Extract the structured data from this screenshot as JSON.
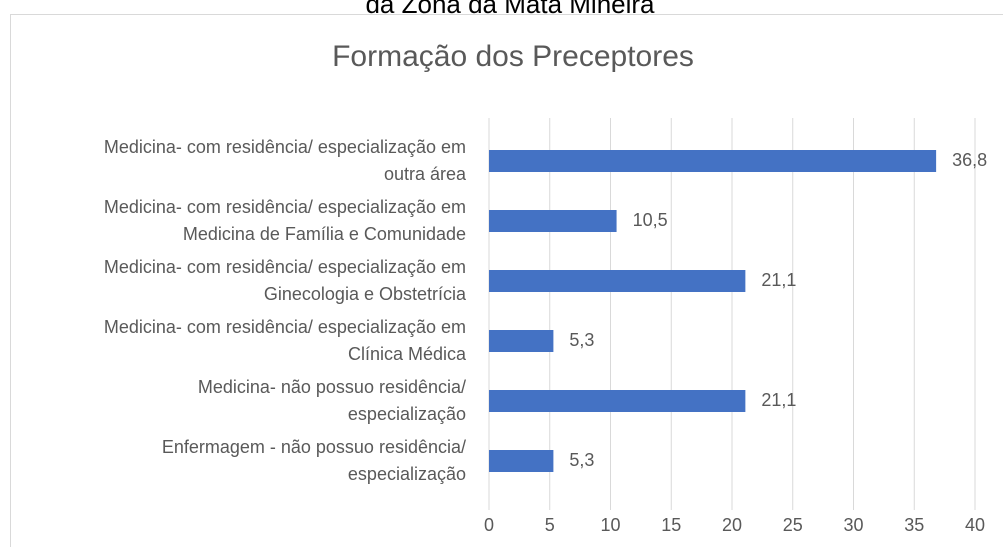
{
  "header_text": "da Zona da Mata Mineira",
  "chart_data": {
    "type": "bar",
    "orientation": "horizontal",
    "title": "Formação dos Preceptores",
    "categories": [
      [
        "Medicina- com residência/ especialização em",
        "outra área"
      ],
      [
        "Medicina- com residência/ especialização em",
        "Medicina de Família e Comunidade"
      ],
      [
        "Medicina- com residência/ especialização em",
        "Ginecologia e Obstetrícia"
      ],
      [
        "Medicina- com residência/ especialização em",
        "Clínica Médica"
      ],
      [
        "Medicina- não possuo residência/",
        "especialização"
      ],
      [
        "Enfermagem - não possuo residência/",
        "especialização"
      ]
    ],
    "values": [
      36.8,
      10.5,
      21.1,
      5.3,
      21.1,
      5.3
    ],
    "value_labels": [
      "36,8",
      "10,5",
      "21,1",
      "5,3",
      "21,1",
      "5,3"
    ],
    "color": "#4472c4",
    "xlim": [
      0,
      40
    ],
    "xticks": [
      0,
      5,
      10,
      15,
      20,
      25,
      30,
      35,
      40
    ],
    "grid": true
  }
}
